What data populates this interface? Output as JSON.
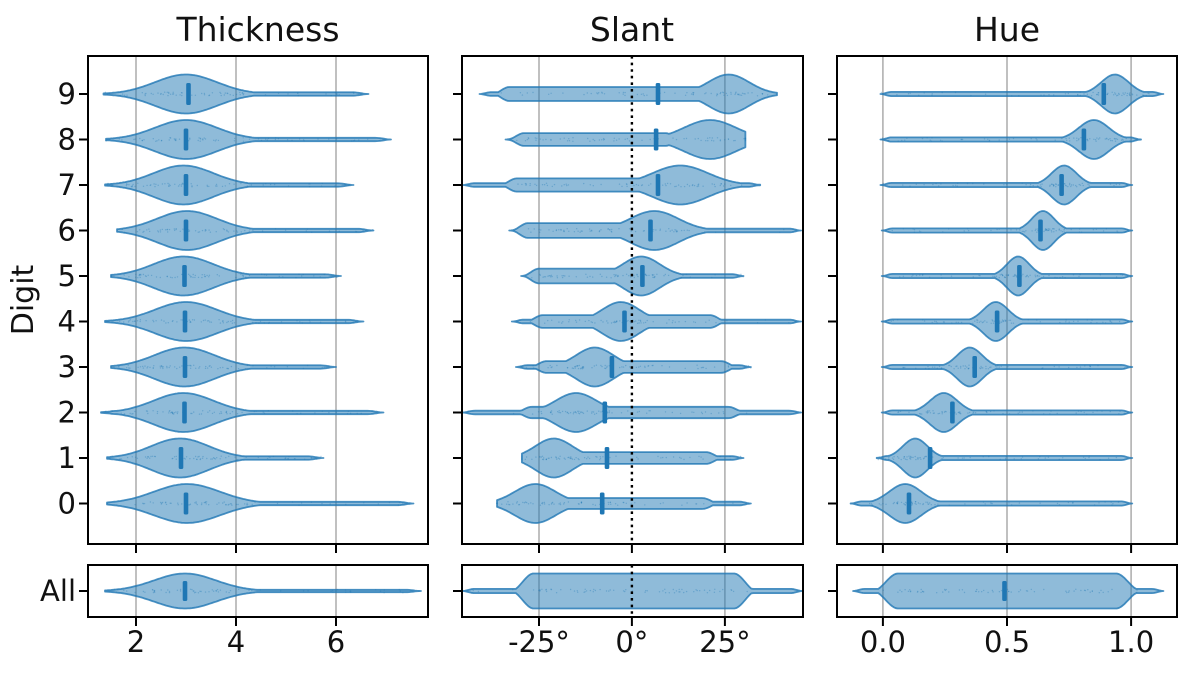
{
  "figure": {
    "ylabel": "Digit",
    "background": "#ffffff"
  },
  "colors": {
    "violin_fill": "#1f77b4",
    "violin_fill_alpha": 0.5,
    "violin_edge": "#1f77b4",
    "violin_edge_alpha": 0.8,
    "median_bar": "#1f77b4",
    "grid": "#b0b0b0",
    "zero_line": "#000000",
    "axis": "#000000",
    "text": "#111111"
  },
  "chart_data": [
    {
      "type": "violin",
      "orientation": "horizontal",
      "title": "Thickness",
      "categories": [
        "9",
        "8",
        "7",
        "6",
        "5",
        "4",
        "3",
        "2",
        "1",
        "0"
      ],
      "all_label": "All",
      "x_range": [
        1.04,
        7.84
      ],
      "grid": true,
      "zero_line": false,
      "x_ticks": [
        {
          "v": 2,
          "label": "2"
        },
        {
          "v": 4,
          "label": "4"
        },
        {
          "v": 6,
          "label": "6"
        }
      ],
      "tail_taper": 0.3,
      "plateau_taper": 1,
      "tail_h": 0.085,
      "violins": [
        {
          "digit": "9",
          "min": 1.35,
          "max": 6.65,
          "bump": {
            "c": 3.0,
            "s": 0.62
          },
          "plateau": null,
          "median": 3.05
        },
        {
          "digit": "8",
          "min": 1.4,
          "max": 7.1,
          "bump": {
            "c": 3.0,
            "s": 0.62
          },
          "plateau": null,
          "median": 3.0
        },
        {
          "digit": "7",
          "min": 1.38,
          "max": 6.35,
          "bump": {
            "c": 2.95,
            "s": 0.6
          },
          "plateau": null,
          "median": 3.0
        },
        {
          "digit": "6",
          "min": 1.62,
          "max": 6.75,
          "bump": {
            "c": 3.02,
            "s": 0.6
          },
          "plateau": null,
          "median": 3.0
        },
        {
          "digit": "5",
          "min": 1.5,
          "max": 6.1,
          "bump": {
            "c": 2.95,
            "s": 0.6
          },
          "plateau": null,
          "median": 2.97
        },
        {
          "digit": "4",
          "min": 1.38,
          "max": 6.55,
          "bump": {
            "c": 3.0,
            "s": 0.62
          },
          "plateau": null,
          "median": 2.98
        },
        {
          "digit": "3",
          "min": 1.5,
          "max": 6.0,
          "bump": {
            "c": 2.97,
            "s": 0.6
          },
          "plateau": null,
          "median": 2.98
        },
        {
          "digit": "2",
          "min": 1.3,
          "max": 6.95,
          "bump": {
            "c": 2.95,
            "s": 0.6
          },
          "plateau": null,
          "median": 2.97
        },
        {
          "digit": "1",
          "min": 1.42,
          "max": 5.75,
          "bump": {
            "c": 2.88,
            "s": 0.58
          },
          "plateau": null,
          "median": 2.9
        },
        {
          "digit": "0",
          "min": 1.42,
          "max": 7.55,
          "bump": {
            "c": 3.02,
            "s": 0.66
          },
          "plateau": null,
          "median": 3.0
        }
      ],
      "all_violin": {
        "digit": "All",
        "min": 1.38,
        "max": 7.7,
        "bump": {
          "c": 2.98,
          "s": 0.62
        },
        "plateau": null,
        "median": 2.98,
        "tail_h": 0.07
      }
    },
    {
      "type": "violin",
      "orientation": "horizontal",
      "title": "Slant",
      "categories": [
        "9",
        "8",
        "7",
        "6",
        "5",
        "4",
        "3",
        "2",
        "1",
        "0"
      ],
      "all_label": "All",
      "x_range": [
        -45.7,
        46.0
      ],
      "grid": true,
      "zero_line": true,
      "x_ticks": [
        {
          "v": -25,
          "label": "-25°"
        },
        {
          "v": 0,
          "label": "0°",
          "zero": true
        },
        {
          "v": 25,
          "label": "25°"
        }
      ],
      "tail_taper": 3,
      "plateau_taper": 4.5,
      "tail_h": 0.09,
      "violins": [
        {
          "digit": "9",
          "min": -41.0,
          "max": 39.0,
          "bump": {
            "c": 26,
            "s": 5.5
          },
          "plateau": [
            -33,
            19,
            0.36
          ],
          "median": 7.0
        },
        {
          "digit": "8",
          "min": -34.0,
          "max": 30.5,
          "bump": {
            "c": 21,
            "s": 7.0
          },
          "plateau": [
            -29,
            9,
            0.33
          ],
          "median": 6.5
        },
        {
          "digit": "7",
          "min": -45.5,
          "max": 34.5,
          "bump": {
            "c": 13,
            "s": 7.5
          },
          "plateau": [
            -31,
            3,
            0.34
          ],
          "median": 7.0
        },
        {
          "digit": "6",
          "min": -33.0,
          "max": 45.5,
          "bump": {
            "c": 6,
            "s": 6.5
          },
          "plateau": [
            -28,
            -3,
            0.38
          ],
          "median": 5.0
        },
        {
          "digit": "5",
          "min": -29.8,
          "max": 30.0,
          "bump": {
            "c": 2.5,
            "s": 5.0
          },
          "plateau": [
            -25,
            -5,
            0.38
          ],
          "median": 2.8
        },
        {
          "digit": "4",
          "min": -32.3,
          "max": 45.5,
          "bump": {
            "c": -3,
            "s": 5.0
          },
          "plateau": [
            -24,
            21,
            0.33
          ],
          "median": -2.0
        },
        {
          "digit": "3",
          "min": -31.2,
          "max": 32.0,
          "bump": {
            "c": -10,
            "s": 5.0
          },
          "plateau": [
            -23,
            24,
            0.3
          ],
          "median": -5.4
        },
        {
          "digit": "2",
          "min": -45.5,
          "max": 45.5,
          "bump": {
            "c": -15,
            "s": 5.5
          },
          "plateau": [
            -27,
            26,
            0.29
          ],
          "median": -7.3
        },
        {
          "digit": "1",
          "min": -29.6,
          "max": 30.0,
          "bump": {
            "c": -21,
            "s": 5.0
          },
          "plateau": [
            -22,
            20,
            0.3
          ],
          "median": -6.7
        },
        {
          "digit": "0",
          "min": -36.3,
          "max": 32.0,
          "bump": {
            "c": -26,
            "s": 5.5
          },
          "plateau": [
            -24,
            19,
            0.28
          ],
          "median": -8.0
        }
      ],
      "all_violin": {
        "digit": "All",
        "min": -45.5,
        "max": 45.8,
        "bump": null,
        "plateau": [
          -26.5,
          27.5,
          1.0
        ],
        "plateau_taper": 6,
        "median": null,
        "tail_h": 0.12
      }
    },
    {
      "type": "violin",
      "orientation": "horizontal",
      "title": "Hue",
      "categories": [
        "9",
        "8",
        "7",
        "6",
        "5",
        "4",
        "3",
        "2",
        "1",
        "0"
      ],
      "all_label": "All",
      "x_range": [
        -0.185,
        1.185
      ],
      "grid": true,
      "zero_line": false,
      "x_ticks": [
        {
          "v": 0.0,
          "label": "0.0"
        },
        {
          "v": 0.5,
          "label": "0.5"
        },
        {
          "v": 1.0,
          "label": "1.0"
        }
      ],
      "tail_taper": 0.045,
      "plateau_taper": 0.07,
      "tail_h": 0.11,
      "violins": [
        {
          "digit": "9",
          "min": -0.01,
          "max": 1.13,
          "bump": {
            "c": 0.935,
            "s": 0.055
          },
          "plateau": null,
          "median": 0.89
        },
        {
          "digit": "8",
          "min": -0.01,
          "max": 1.04,
          "bump": {
            "c": 0.85,
            "s": 0.06
          },
          "plateau": null,
          "median": 0.81
        },
        {
          "digit": "7",
          "min": -0.01,
          "max": 1.005,
          "bump": {
            "c": 0.73,
            "s": 0.05
          },
          "plateau": null,
          "median": 0.72
        },
        {
          "digit": "6",
          "min": -0.005,
          "max": 1.005,
          "bump": {
            "c": 0.645,
            "s": 0.045
          },
          "plateau": null,
          "median": 0.635
        },
        {
          "digit": "5",
          "min": -0.005,
          "max": 1.005,
          "bump": {
            "c": 0.545,
            "s": 0.045
          },
          "plateau": null,
          "median": 0.55
        },
        {
          "digit": "4",
          "min": -0.005,
          "max": 1.005,
          "bump": {
            "c": 0.455,
            "s": 0.05
          },
          "plateau": null,
          "median": 0.46
        },
        {
          "digit": "3",
          "min": -0.005,
          "max": 1.005,
          "bump": {
            "c": 0.35,
            "s": 0.05
          },
          "plateau": null,
          "median": 0.37
        },
        {
          "digit": "2",
          "min": -0.005,
          "max": 1.005,
          "bump": {
            "c": 0.245,
            "s": 0.055
          },
          "plateau": null,
          "median": 0.28
        },
        {
          "digit": "1",
          "min": -0.025,
          "max": 1.005,
          "bump": {
            "c": 0.13,
            "s": 0.05
          },
          "plateau": null,
          "median": 0.19
        },
        {
          "digit": "0",
          "min": -0.13,
          "max": 1.005,
          "bump": {
            "c": 0.09,
            "s": 0.065
          },
          "plateau": null,
          "median": 0.105
        }
      ],
      "all_violin": {
        "digit": "All",
        "min": -0.12,
        "max": 1.13,
        "bump": null,
        "plateau": [
          0.06,
          0.94,
          1.0
        ],
        "plateau_taper": 0.1,
        "median": 0.49,
        "tail_h": 0.12
      }
    }
  ],
  "has_strip_dots": true
}
